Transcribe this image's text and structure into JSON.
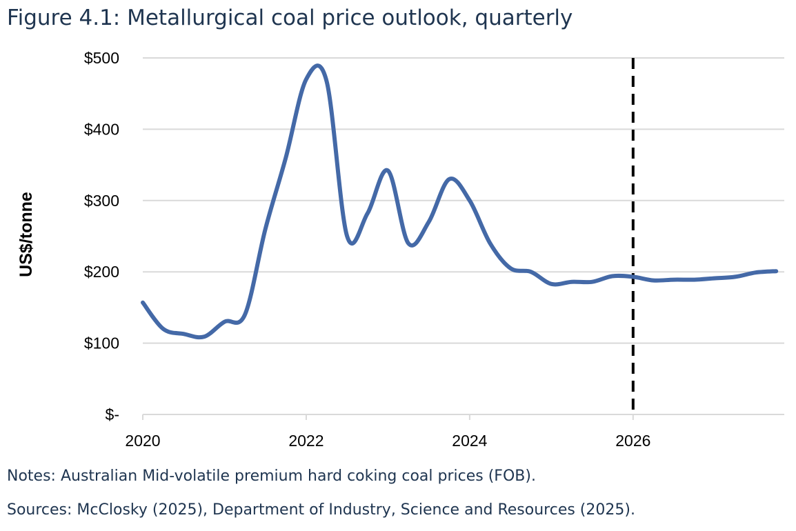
{
  "title": "Figure 4.1: Metallurgical coal price outlook, quarterly",
  "notes": "Notes: Australian Mid-volatile premium hard coking coal prices (FOB).",
  "sources": "Sources: McClosky (2025), Department of Industry, Science and Resources (2025).",
  "chart_data": {
    "type": "line",
    "title": "Figure 4.1: Metallurgical coal price outlook, quarterly",
    "xlabel": "",
    "ylabel": "US$/tonne",
    "xlim": [
      2020,
      2027.85
    ],
    "ylim": [
      0,
      500
    ],
    "x_ticks": [
      2020,
      2022,
      2024,
      2026
    ],
    "x_tick_labels": [
      "2020",
      "2022",
      "2024",
      "2026"
    ],
    "y_ticks": [
      0,
      100,
      200,
      300,
      400,
      500
    ],
    "y_tick_labels": [
      "$-",
      "$100",
      "$200",
      "$300",
      "$400",
      "$500"
    ],
    "grid": "horizontal",
    "line_color": "#4469a7",
    "forecast_divider": {
      "x": 2026,
      "style": "dashed",
      "color": "#000000"
    },
    "series": [
      {
        "x": [
          2020.0,
          2020.25,
          2020.5,
          2020.75,
          2021.0,
          2021.25,
          2021.5,
          2021.75,
          2022.0,
          2022.25,
          2022.5,
          2022.75,
          2023.0,
          2023.25,
          2023.5,
          2023.75,
          2024.0,
          2024.25,
          2024.5,
          2024.75,
          2025.0,
          2025.25,
          2025.5,
          2025.75,
          2026.0,
          2026.25,
          2026.5,
          2026.75,
          2027.0,
          2027.25,
          2027.5,
          2027.75
        ],
        "values": [
          157,
          120,
          113,
          109,
          130,
          140,
          260,
          360,
          470,
          467,
          250,
          282,
          342,
          240,
          270,
          330,
          300,
          240,
          205,
          200,
          183,
          186,
          186,
          194,
          193,
          188,
          189,
          189,
          191,
          193,
          199,
          201
        ]
      }
    ]
  }
}
